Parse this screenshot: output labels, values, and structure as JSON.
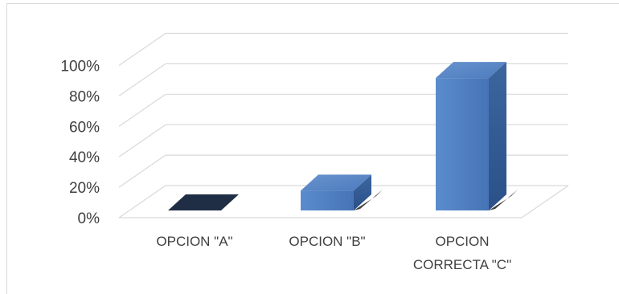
{
  "chart_data": {
    "type": "bar",
    "style": "3d-column",
    "categories": [
      "OPCION \"A\"",
      "OPCION \"B\"",
      "OPCION CORRECTA \"C\""
    ],
    "category_lines": [
      [
        "OPCION \"A\""
      ],
      [
        "OPCION \"B\""
      ],
      [
        "OPCION",
        "CORRECTA \"C\""
      ]
    ],
    "values": [
      0,
      13,
      87
    ],
    "value_unit": "%",
    "ylim": [
      0,
      100
    ],
    "ytick_labels": [
      "0%",
      "20%",
      "40%",
      "60%",
      "80%",
      "100%"
    ],
    "grid": true,
    "legend": "none",
    "title": "",
    "xlabel": "",
    "ylabel": "",
    "colors": {
      "bar_front": "#4f7fc3",
      "bar_top": "#5b88c8",
      "bar_side": "#2f5a94",
      "zero_bar": "#1f2d45",
      "gridline": "#d9d9d9",
      "axis_text": "#404040",
      "frame_border": "#d9d9d9"
    }
  }
}
